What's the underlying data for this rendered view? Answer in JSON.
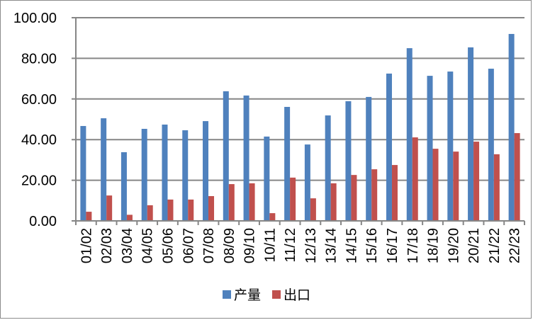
{
  "chart_data": {
    "type": "bar",
    "title": "",
    "xlabel": "",
    "ylabel": "",
    "ylim": [
      0,
      100
    ],
    "yticks": [
      "0.00",
      "20.00",
      "40.00",
      "60.00",
      "80.00",
      "100.00"
    ],
    "grid": true,
    "legend_position": "bottom",
    "categories": [
      "01/02",
      "02/03",
      "03/04",
      "04/05",
      "05/06",
      "06/07",
      "07/08",
      "08/09",
      "09/10",
      "10/11",
      "11/12",
      "12/13",
      "13/14",
      "14/15",
      "15/16",
      "16/17",
      "17/18",
      "18/19",
      "19/20",
      "20/21",
      "21/22",
      "22/23"
    ],
    "series": [
      {
        "name": "产量",
        "color": "#4f81bd",
        "values": [
          46.7,
          50.5,
          33.8,
          45.3,
          47.4,
          44.6,
          49.1,
          63.8,
          61.7,
          41.5,
          56.1,
          37.6,
          51.9,
          58.9,
          61.0,
          72.5,
          85.0,
          71.4,
          73.5,
          85.4,
          74.9,
          92.0
        ]
      },
      {
        "name": "出口",
        "color": "#c0504d",
        "values": [
          4.5,
          12.5,
          3.0,
          7.7,
          10.5,
          10.5,
          12.2,
          18.1,
          18.5,
          3.8,
          21.3,
          11.1,
          18.5,
          22.6,
          25.4,
          27.5,
          41.1,
          35.5,
          34.1,
          39.0,
          32.8,
          43.2
        ]
      }
    ]
  },
  "legend": {
    "items": [
      {
        "label": "产量",
        "color": "#4f81bd"
      },
      {
        "label": "出口",
        "color": "#c0504d"
      }
    ]
  }
}
